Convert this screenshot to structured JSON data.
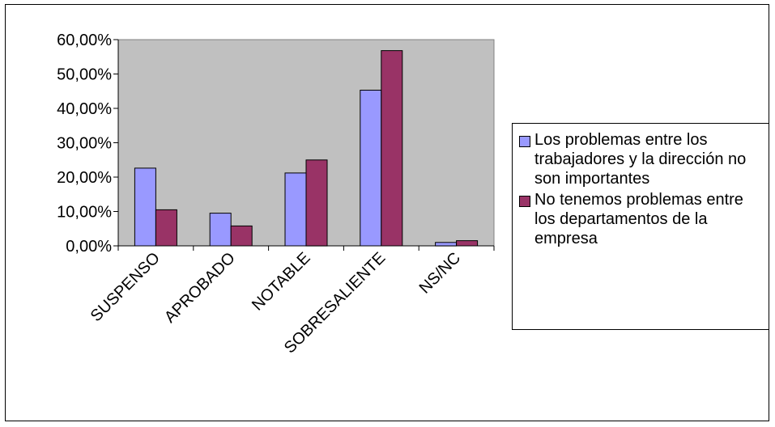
{
  "chart_data": {
    "type": "bar",
    "categories": [
      "SUSPENSO",
      "APROBADO",
      "NOTABLE",
      "SOBRESALIENTE",
      "NS/NC"
    ],
    "series": [
      {
        "name": "Los problemas entre los trabajadores y la dirección no son importantes",
        "color": "#9999ff",
        "values": [
          22.6,
          9.5,
          21.2,
          45.3,
          1.0
        ]
      },
      {
        "name": "No tenemos problemas entre los departamentos de la empresa",
        "color": "#993366",
        "values": [
          10.5,
          5.8,
          25.0,
          56.8,
          1.5
        ]
      }
    ],
    "yticks": [
      "0,00%",
      "10,00%",
      "20,00%",
      "30,00%",
      "40,00%",
      "50,00%",
      "60,00%"
    ],
    "ylim": [
      0,
      60
    ],
    "title": "",
    "xlabel": "",
    "ylabel": "",
    "plot_background": "#c0c0c0",
    "grid": false,
    "legend_position": "right"
  }
}
